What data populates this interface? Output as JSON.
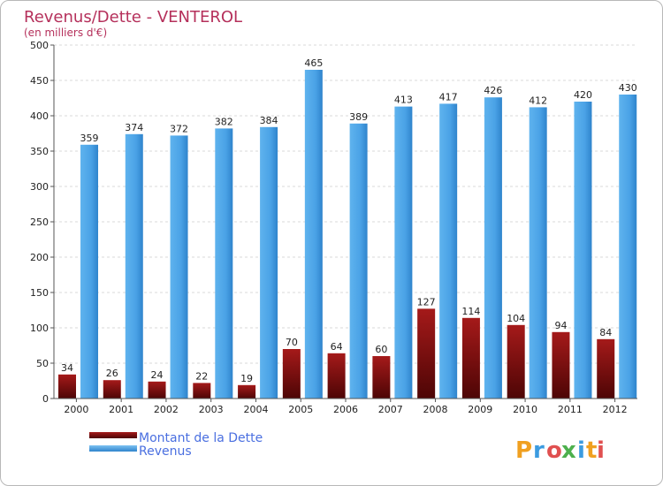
{
  "chart_data": {
    "type": "bar",
    "title": "Revenus/Dette - VENTEROL",
    "subtitle": "(en milliers d'€)",
    "categories": [
      "2000",
      "2001",
      "2002",
      "2003",
      "2004",
      "2005",
      "2006",
      "2007",
      "2008",
      "2009",
      "2010",
      "2011",
      "2012"
    ],
    "series": [
      {
        "name": "Montant de la Dette",
        "values": [
          34,
          26,
          24,
          22,
          19,
          70,
          64,
          60,
          127,
          114,
          104,
          94,
          84
        ],
        "color": "#7a0e0e"
      },
      {
        "name": "Revenus",
        "values": [
          359,
          374,
          372,
          382,
          384,
          465,
          389,
          413,
          417,
          426,
          412,
          420,
          430
        ],
        "color": "#4ea3e8"
      }
    ],
    "ylim": [
      0,
      500
    ],
    "yticks": [
      0,
      50,
      100,
      150,
      200,
      250,
      300,
      350,
      400,
      450,
      500
    ],
    "grid": true,
    "legend_position": "bottom-left"
  },
  "logo": {
    "letters": [
      "P",
      "r",
      "o",
      "x",
      "i",
      "t",
      "i"
    ],
    "colors": [
      "#f0a020",
      "#3b9be0",
      "#e05050",
      "#4db04d",
      "#3b9be0",
      "#f0a020",
      "#e05050"
    ]
  }
}
